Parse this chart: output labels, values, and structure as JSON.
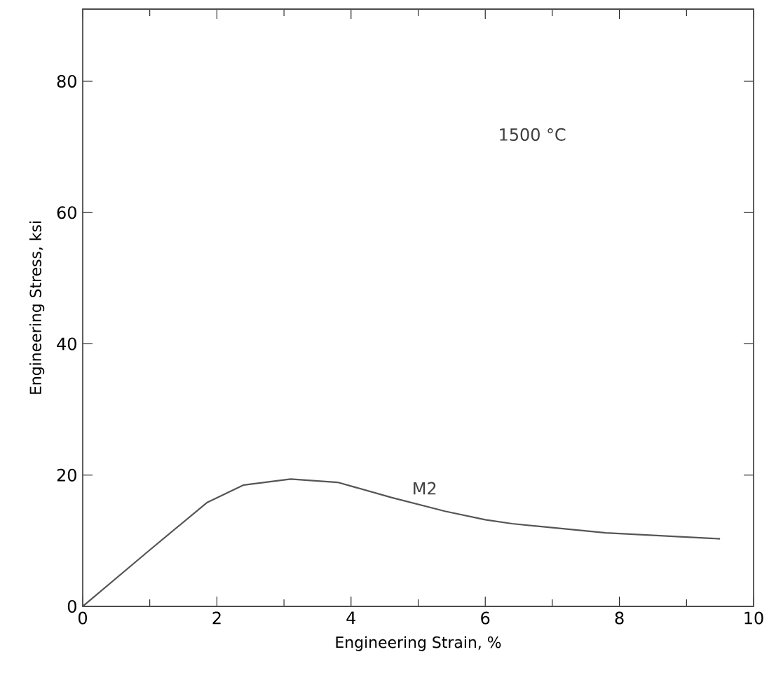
{
  "chart_data": {
    "type": "line",
    "xlabel": "Engineering Strain, %",
    "ylabel": "Engineering Stress, ksi",
    "annotations": [
      "1500 °C"
    ],
    "xlim": [
      0,
      10
    ],
    "ylim": [
      0,
      91
    ],
    "xticks": [
      0,
      2,
      4,
      6,
      8,
      10
    ],
    "yticks": [
      0,
      20,
      40,
      60,
      80
    ],
    "grid": false,
    "legend": false,
    "marker": "none",
    "line_style": "solid",
    "series": [
      {
        "name": "M2",
        "color": "#555555",
        "x": [
          0,
          1.0,
          1.85,
          2.4,
          3.1,
          3.8,
          4.6,
          5.4,
          6.0,
          6.4,
          7.8,
          9.5
        ],
        "values": [
          0,
          8.6,
          15.8,
          18.5,
          19.4,
          18.9,
          16.6,
          14.5,
          13.2,
          12.6,
          11.2,
          10.3
        ]
      }
    ]
  }
}
